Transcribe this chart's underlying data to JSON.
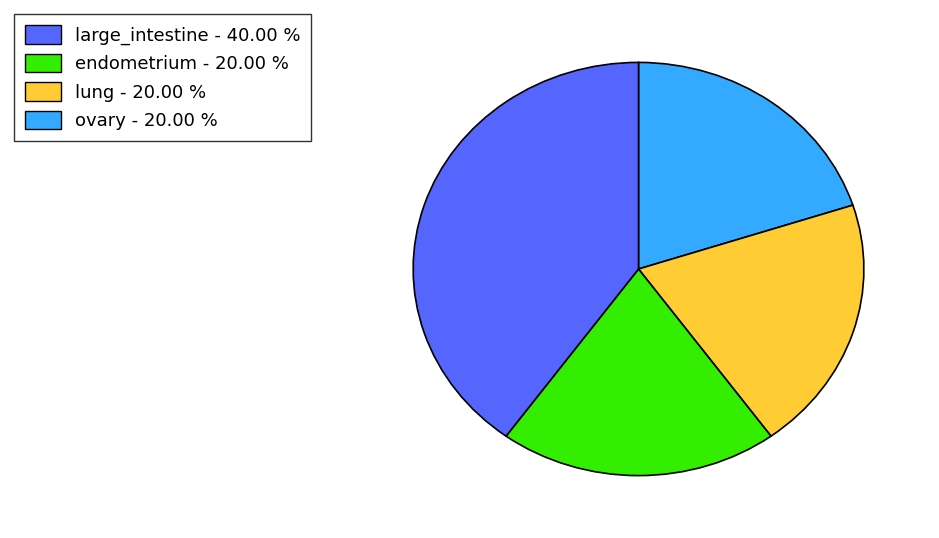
{
  "labels": [
    "large_intestine",
    "endometrium",
    "lung",
    "ovary"
  ],
  "values": [
    40.0,
    20.0,
    20.0,
    20.0
  ],
  "colors": [
    "#5566ff",
    "#33ee00",
    "#ffcc33",
    "#33aaff"
  ],
  "legend_labels": [
    "large_intestine - 40.00 %",
    "endometrium - 20.00 %",
    "lung - 20.00 %",
    "ovary - 20.00 %"
  ],
  "figsize": [
    9.39,
    5.38
  ],
  "dpi": 100,
  "background_color": "#ffffff",
  "legend_fontsize": 13
}
